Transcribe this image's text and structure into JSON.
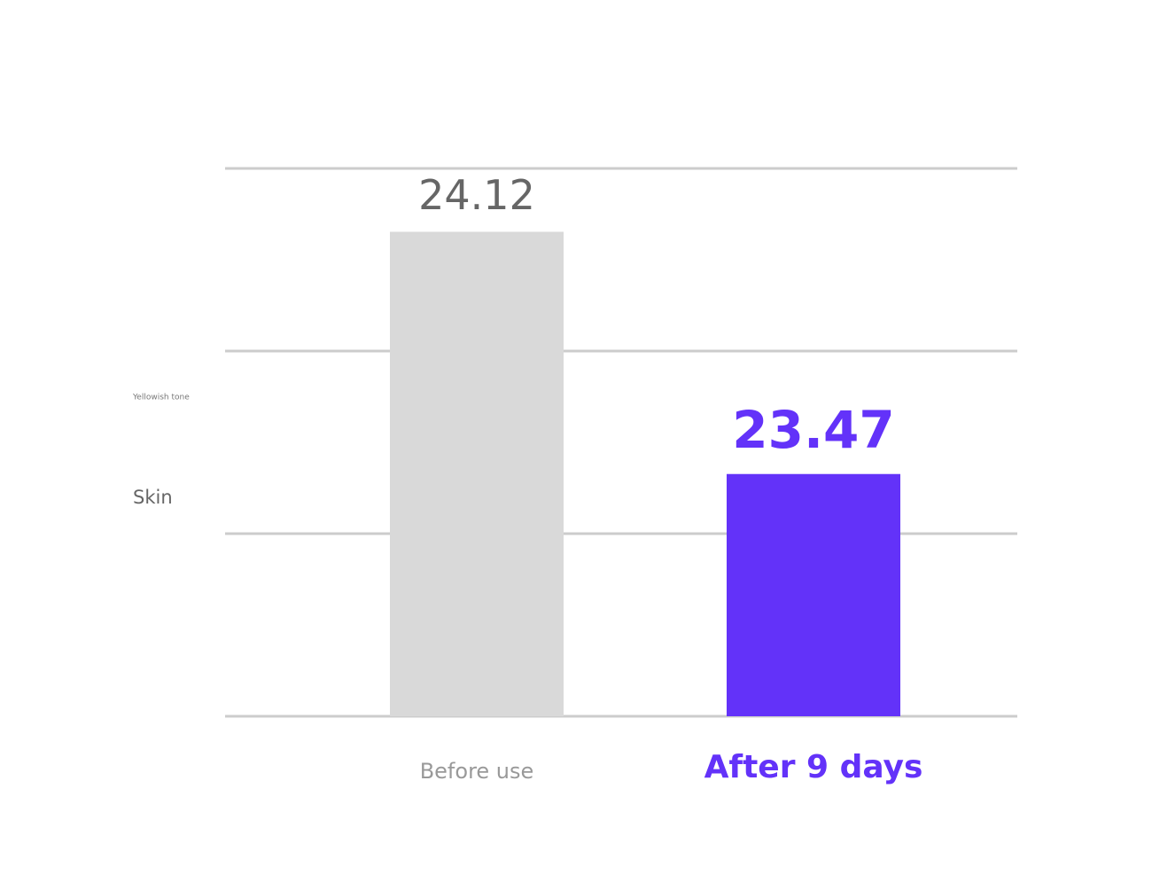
{
  "chart_data": {
    "type": "bar",
    "categories": [
      "Before use",
      "After 9 days"
    ],
    "values": [
      24.12,
      23.47
    ],
    "colors": [
      "#d9d9d9",
      "#6332f9"
    ],
    "annotations": [
      "Yellowish tone",
      "Skin"
    ],
    "ylim": [
      22.82,
      24.29
    ],
    "yticks": [
      22.82,
      23.31,
      23.8,
      24.29
    ],
    "grid": true
  }
}
